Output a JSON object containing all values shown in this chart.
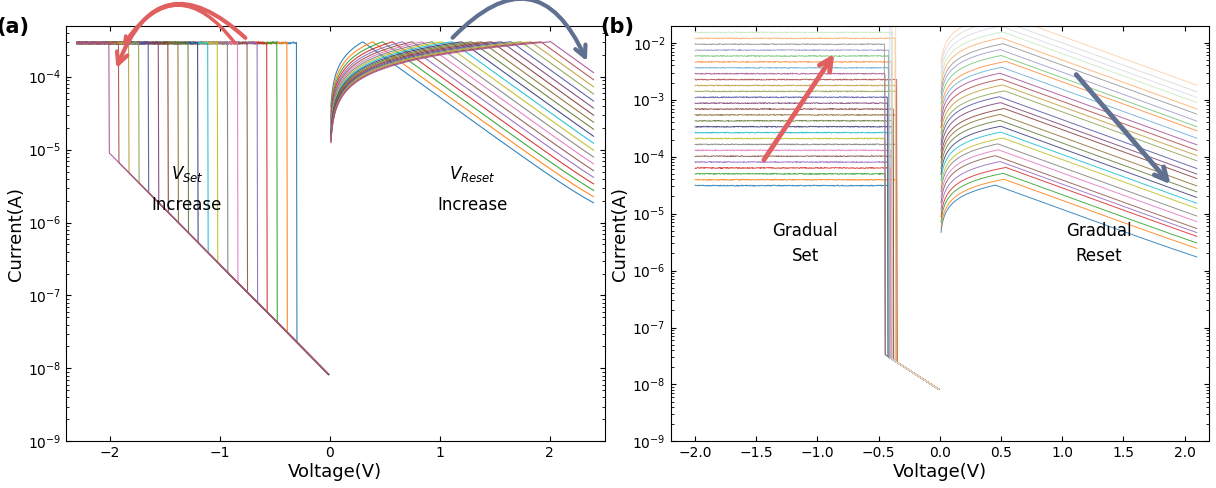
{
  "fig_width": 12.16,
  "fig_height": 4.88,
  "dpi": 100,
  "xlim_a": [
    -2.4,
    2.5
  ],
  "xlim_b": [
    -2.2,
    2.2
  ],
  "ylim_a": [
    1e-09,
    0.0005
  ],
  "ylim_b": [
    1e-09,
    0.02
  ],
  "xlabel": "Voltage(V)",
  "ylabel": "Current(A)",
  "label_a": "(a)",
  "label_b": "(b)",
  "n_curves_a": 20,
  "n_curves_b": 30,
  "colors": [
    "#1f77b4",
    "#ff7f0e",
    "#2ca02c",
    "#d62728",
    "#9467bd",
    "#8c564b",
    "#e377c2",
    "#7f7f7f",
    "#bcbd22",
    "#17becf",
    "#393b79",
    "#637939",
    "#8c6d31",
    "#843c39",
    "#7b4173",
    "#5254a3",
    "#8ca252",
    "#bd9e39",
    "#ad494a",
    "#a55194",
    "#6baed6",
    "#fd8d3c",
    "#74c476",
    "#9e9ac8",
    "#969696",
    "#fdae6b",
    "#c7e9c0",
    "#dadaeb",
    "#d9d9d9",
    "#fdd0a2"
  ],
  "arrow_red": "#E06060",
  "arrow_blue": "#607090"
}
